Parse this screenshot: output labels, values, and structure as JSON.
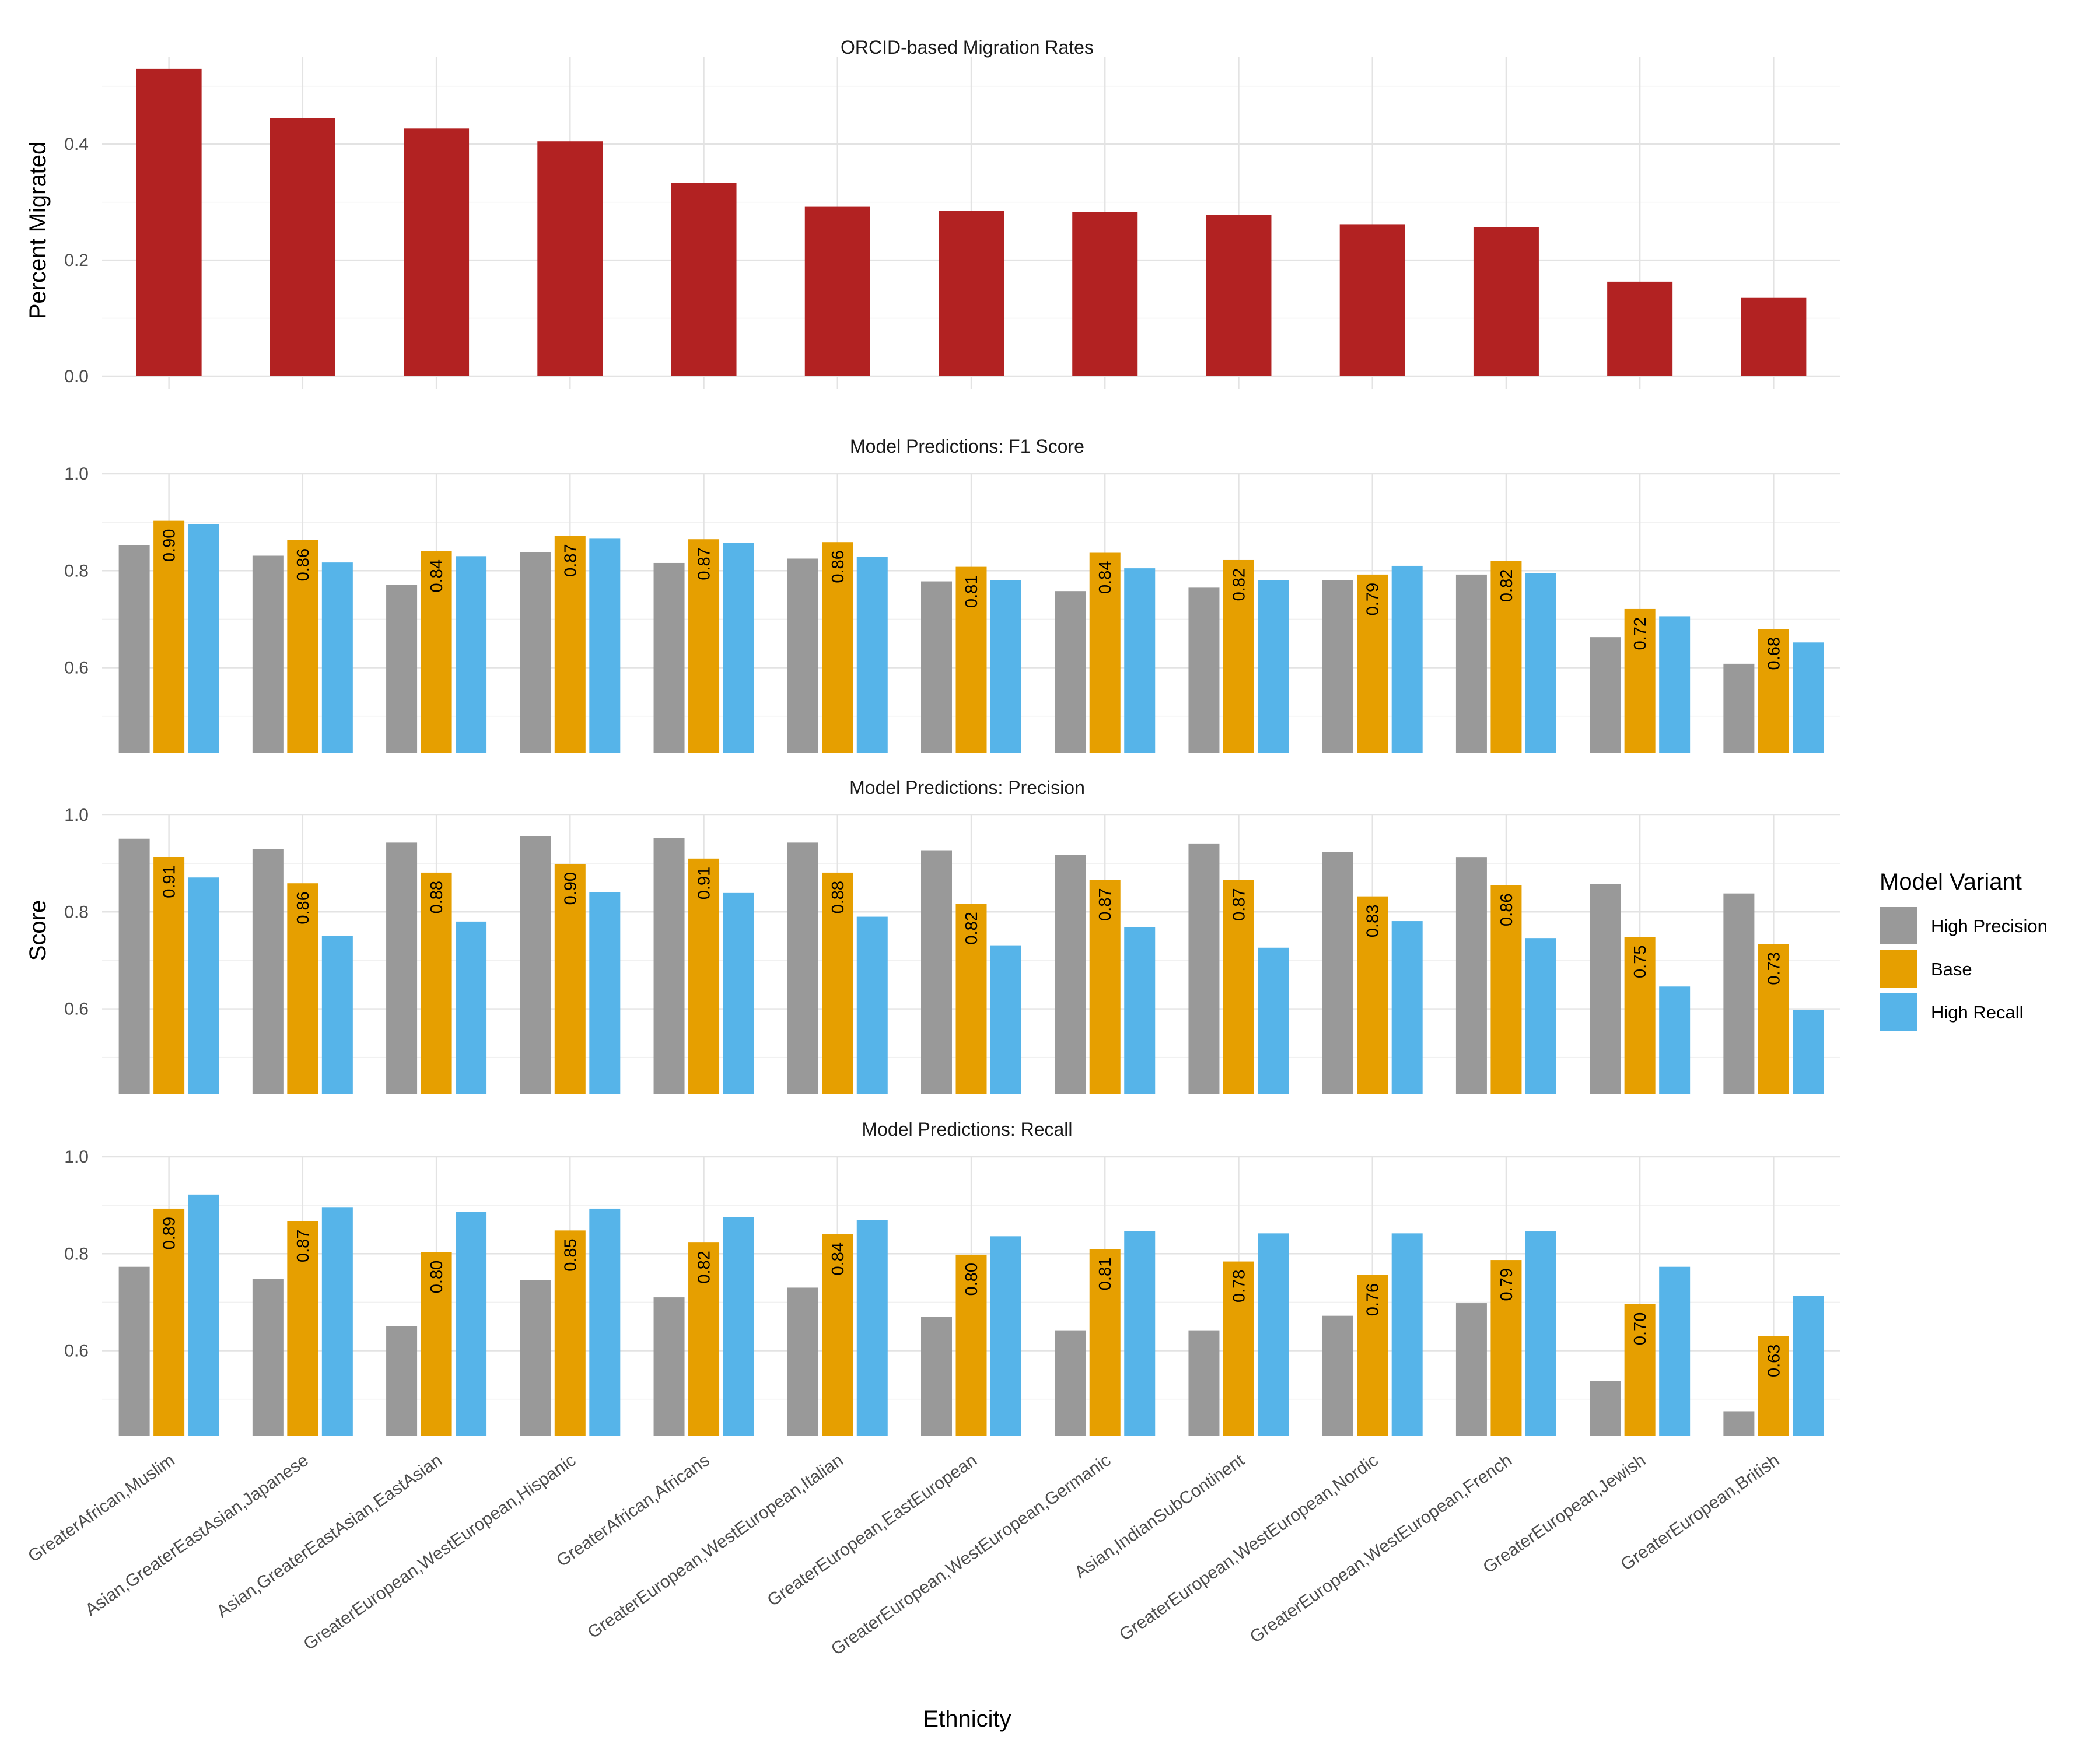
{
  "chart_data": {
    "type": "bar",
    "xlabel": "Ethnicity",
    "categories": [
      "GreaterAfrican,Muslim",
      "Asian,GreaterEastAsian,Japanese",
      "Asian,GreaterEastAsian,EastAsian",
      "GreaterEuropean,WestEuropean,Hispanic",
      "GreaterAfrican,Africans",
      "GreaterEuropean,WestEuropean,Italian",
      "GreaterEuropean,EastEuropean",
      "GreaterEuropean,WestEuropean,Germanic",
      "Asian,IndianSubContinent",
      "GreaterEuropean,WestEuropean,Nordic",
      "GreaterEuropean,WestEuropean,French",
      "GreaterEuropean,Jewish",
      "GreaterEuropean,British"
    ],
    "migration": {
      "title": "ORCID-based Migration Rates",
      "ylabel": "Percent Migrated",
      "ylim": [
        0,
        0.55
      ],
      "yticks": [
        "0.0",
        "0.2",
        "0.4"
      ],
      "color": "#B22222",
      "values": [
        0.53,
        0.445,
        0.427,
        0.405,
        0.333,
        0.292,
        0.285,
        0.283,
        0.278,
        0.262,
        0.257,
        0.163,
        0.135
      ]
    },
    "score_ylabel": "Score",
    "panels": [
      {
        "title": "Model Predictions: F1 Score",
        "ylim": [
          0.425,
          1.0
        ],
        "yticks": [
          "0.6",
          "0.8",
          "1.0"
        ],
        "high_precision": [
          0.853,
          0.831,
          0.771,
          0.838,
          0.816,
          0.825,
          0.778,
          0.758,
          0.765,
          0.78,
          0.792,
          0.663,
          0.608
        ],
        "base": [
          0.903,
          0.863,
          0.84,
          0.872,
          0.865,
          0.859,
          0.808,
          0.837,
          0.822,
          0.792,
          0.82,
          0.721,
          0.68
        ],
        "high_recall": [
          0.896,
          0.817,
          0.83,
          0.866,
          0.857,
          0.828,
          0.78,
          0.805,
          0.78,
          0.81,
          0.795,
          0.706,
          0.652
        ],
        "labels": [
          "0.90",
          "0.86",
          "0.84",
          "0.87",
          "0.87",
          "0.86",
          "0.81",
          "0.84",
          "0.82",
          "0.79",
          "0.82",
          "0.72",
          "0.68"
        ]
      },
      {
        "title": "Model Predictions: Precision",
        "ylim": [
          0.425,
          1.0
        ],
        "yticks": [
          "0.6",
          "0.8",
          "1.0"
        ],
        "high_precision": [
          0.951,
          0.93,
          0.943,
          0.956,
          0.953,
          0.943,
          0.926,
          0.918,
          0.94,
          0.924,
          0.912,
          0.858,
          0.838
        ],
        "base": [
          0.913,
          0.859,
          0.881,
          0.899,
          0.91,
          0.881,
          0.817,
          0.866,
          0.866,
          0.832,
          0.855,
          0.748,
          0.734
        ],
        "high_recall": [
          0.871,
          0.75,
          0.78,
          0.84,
          0.839,
          0.79,
          0.731,
          0.768,
          0.726,
          0.781,
          0.746,
          0.646,
          0.598
        ],
        "labels": [
          "0.91",
          "0.86",
          "0.88",
          "0.90",
          "0.91",
          "0.88",
          "0.82",
          "0.87",
          "0.87",
          "0.83",
          "0.86",
          "0.75",
          "0.73"
        ]
      },
      {
        "title": "Model Predictions: Recall",
        "ylim": [
          0.425,
          1.0
        ],
        "yticks": [
          "0.6",
          "0.8",
          "1.0"
        ],
        "high_precision": [
          0.773,
          0.748,
          0.65,
          0.745,
          0.71,
          0.73,
          0.67,
          0.642,
          0.642,
          0.672,
          0.698,
          0.538,
          0.475
        ],
        "base": [
          0.893,
          0.867,
          0.803,
          0.848,
          0.823,
          0.84,
          0.798,
          0.809,
          0.784,
          0.756,
          0.787,
          0.696,
          0.63
        ],
        "high_recall": [
          0.922,
          0.895,
          0.886,
          0.893,
          0.876,
          0.869,
          0.836,
          0.847,
          0.842,
          0.842,
          0.846,
          0.773,
          0.713
        ],
        "labels": [
          "0.89",
          "0.87",
          "0.80",
          "0.85",
          "0.82",
          "0.84",
          "0.80",
          "0.81",
          "0.78",
          "0.76",
          "0.79",
          "0.70",
          "0.63"
        ]
      }
    ],
    "legend": {
      "title": "Model Variant",
      "placement": "right",
      "items": [
        {
          "name": "High Precision",
          "color": "#999999"
        },
        {
          "name": "Base",
          "color": "#E69F00"
        },
        {
          "name": "High Recall",
          "color": "#56B4E9"
        }
      ]
    }
  }
}
